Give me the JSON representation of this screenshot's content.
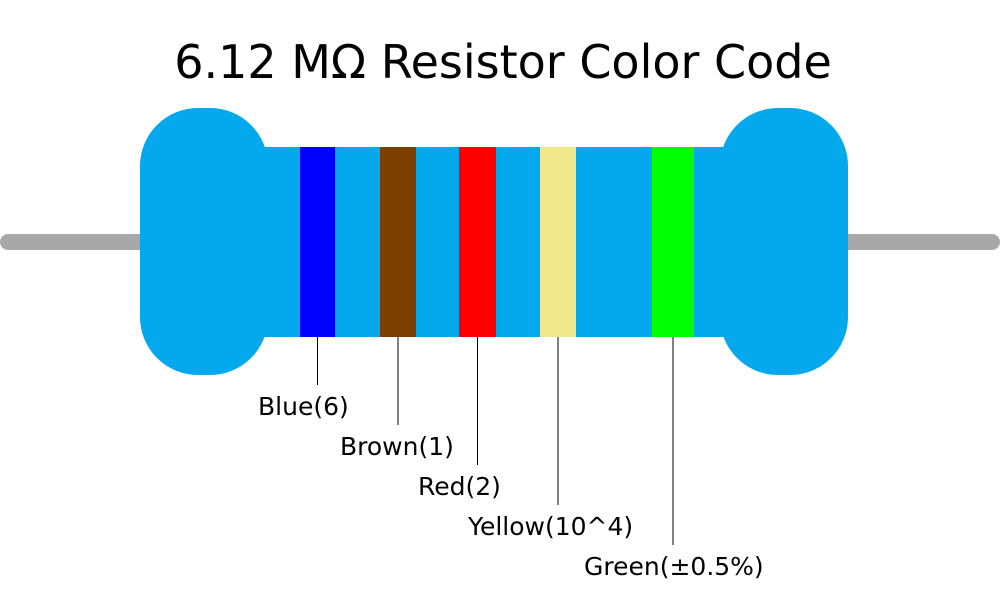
{
  "title": "6.12 MΩ Resistor Color Code",
  "bands": [
    {
      "label": "Blue(6)",
      "color": "#0000ff"
    },
    {
      "label": "Brown(1)",
      "color": "#7b3f00"
    },
    {
      "label": "Red(2)",
      "color": "#ff0000"
    },
    {
      "label": "Yellow(10^4)",
      "color": "#f0e68c"
    },
    {
      "label": "Green(±0.5%)",
      "color": "#00ff00"
    }
  ]
}
